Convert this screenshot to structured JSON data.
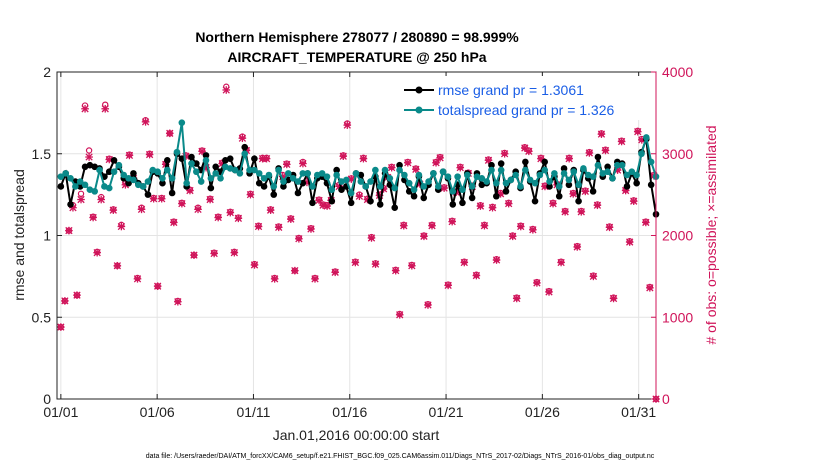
{
  "chart_data": {
    "type": "line",
    "title": "Northern Hemisphere 278077 / 280890 = 98.999%",
    "subtitle": "AIRCRAFT_TEMPERATURE @ 250 hPa",
    "xlabel": "Jan.01,2016 00:00:00 start",
    "ylabel": "rmse and totalspread",
    "y2label": "# of obs: o=possible; ×=assimilated",
    "ylim": [
      0,
      2
    ],
    "y2lim": [
      0,
      4000
    ],
    "xlim": [
      0.8,
      31.9
    ],
    "xticks": [
      1,
      6,
      11,
      16,
      21,
      26,
      31
    ],
    "xtick_labels": [
      "01/01",
      "01/06",
      "01/11",
      "01/16",
      "01/21",
      "01/26",
      "01/31"
    ],
    "yticks": [
      0,
      0.5,
      1,
      1.5,
      2
    ],
    "ytick_labels": [
      "0",
      "0.5",
      "1",
      "1.5",
      "2"
    ],
    "y2ticks": [
      0,
      1000,
      2000,
      3000,
      4000
    ],
    "y2tick_labels": [
      "0",
      "1000",
      "2000",
      "3000",
      "4000"
    ],
    "grid": true,
    "legend_position": "top-right",
    "series": [
      {
        "name": "rmse grand pr = 1.3061",
        "color": "#000000",
        "values": [
          1.3,
          1.38,
          1.19,
          1.33,
          1.3,
          1.42,
          1.43,
          1.42,
          1.41,
          1.36,
          1.39,
          1.46,
          1.42,
          1.35,
          1.32,
          1.38,
          1.32,
          1.3,
          1.25,
          1.39,
          1.38,
          1.32,
          1.46,
          1.26,
          1.5,
          1.47,
          1.3,
          1.48,
          1.44,
          1.4,
          1.49,
          1.29,
          1.42,
          1.39,
          1.46,
          1.47,
          1.4,
          1.41,
          1.54,
          1.38,
          1.47,
          1.32,
          1.3,
          1.36,
          1.25,
          1.41,
          1.3,
          1.34,
          1.37,
          1.26,
          1.32,
          1.38,
          1.2,
          1.35,
          1.36,
          1.32,
          1.21,
          1.4,
          1.28,
          1.3,
          1.2,
          1.38,
          1.37,
          1.3,
          1.21,
          1.36,
          1.19,
          1.38,
          1.31,
          1.17,
          1.43,
          1.34,
          1.27,
          1.24,
          1.36,
          1.23,
          1.31,
          1.38,
          1.28,
          1.39,
          1.35,
          1.19,
          1.31,
          1.2,
          1.38,
          1.23,
          1.38,
          1.31,
          1.32,
          1.43,
          1.24,
          1.44,
          1.27,
          1.34,
          1.39,
          1.29,
          1.45,
          1.33,
          1.21,
          1.38,
          1.45,
          1.3,
          1.36,
          1.24,
          1.41,
          1.31,
          1.4,
          1.21,
          1.4,
          1.35,
          1.27,
          1.48,
          1.36,
          1.42,
          1.35,
          1.45,
          1.44,
          1.3,
          1.38,
          1.32,
          1.51,
          1.59,
          1.31,
          1.13
        ]
      },
      {
        "name": "totalspread grand pr = 1.326",
        "color": "#0a8a8a",
        "values": [
          1.36,
          1.38,
          1.35,
          1.3,
          1.33,
          1.31,
          1.28,
          1.27,
          1.4,
          1.3,
          1.29,
          1.39,
          1.43,
          1.37,
          1.35,
          1.34,
          1.31,
          1.3,
          1.33,
          1.4,
          1.39,
          1.35,
          1.4,
          1.35,
          1.51,
          1.69,
          1.32,
          1.44,
          1.39,
          1.33,
          1.46,
          1.35,
          1.38,
          1.35,
          1.42,
          1.41,
          1.4,
          1.38,
          1.5,
          1.4,
          1.4,
          1.38,
          1.35,
          1.37,
          1.3,
          1.4,
          1.33,
          1.38,
          1.35,
          1.33,
          1.38,
          1.38,
          1.3,
          1.37,
          1.38,
          1.36,
          1.28,
          1.37,
          1.33,
          1.34,
          1.26,
          1.38,
          1.33,
          1.3,
          1.33,
          1.4,
          1.3,
          1.4,
          1.35,
          1.29,
          1.4,
          1.37,
          1.32,
          1.28,
          1.37,
          1.3,
          1.33,
          1.38,
          1.3,
          1.39,
          1.36,
          1.27,
          1.36,
          1.28,
          1.37,
          1.3,
          1.36,
          1.35,
          1.33,
          1.4,
          1.32,
          1.4,
          1.32,
          1.34,
          1.37,
          1.3,
          1.4,
          1.34,
          1.32,
          1.37,
          1.4,
          1.33,
          1.38,
          1.3,
          1.38,
          1.34,
          1.39,
          1.31,
          1.41,
          1.37,
          1.36,
          1.43,
          1.38,
          1.39,
          1.35,
          1.43,
          1.43,
          1.37,
          1.39,
          1.37,
          1.5,
          1.6,
          1.45,
          1.36
        ]
      },
      {
        "name": "obs possible",
        "marker": "o",
        "color": "#d0145a",
        "values": [
          880,
          1200,
          2060,
          2370,
          1270,
          2510,
          3590,
          3040,
          2230,
          1800,
          2470,
          3600,
          2940,
          2320,
          1630,
          2130,
          2640,
          2990,
          2700,
          1480,
          2340,
          3410,
          3000,
          2460,
          1380,
          2460,
          2880,
          3250,
          2170,
          1200,
          2400,
          2980,
          2560,
          1760,
          2340,
          3040,
          2840,
          2450,
          1790,
          2230,
          2890,
          3820,
          2290,
          1800,
          2220,
          3210,
          3050,
          2510,
          1650,
          2120,
          2950,
          2950,
          2320,
          1480,
          2110,
          2740,
          2880,
          2210,
          1570,
          1970,
          2900,
          2670,
          2090,
          1480,
          2440,
          2380,
          2370,
          2440,
          1560,
          2620,
          2980,
          3370,
          2700,
          1680,
          2500,
          2950,
          2450,
          1980,
          1660,
          2500,
          2580,
          2720,
          2840,
          1580,
          1040,
          2130,
          2900,
          1640,
          2820,
          2640,
          2000,
          1160,
          2130,
          2900,
          2960,
          2590,
          1400,
          2180,
          2540,
          2840,
          1680,
          2770,
          2610,
          1520,
          2370,
          2130,
          2930,
          2350,
          1710,
          2520,
          3010,
          2400,
          2000,
          1240,
          2120,
          3080,
          3040,
          2080,
          1430,
          2950,
          2610,
          1320,
          2400,
          2630,
          1680,
          2300,
          2950,
          2520,
          1870,
          2300,
          2550,
          3020,
          1510,
          2380,
          3250,
          3050,
          2110,
          1240,
          2810,
          3160,
          2560,
          1930,
          2430,
          3280,
          3180,
          2170,
          1370,
          2740,
          0
        ]
      },
      {
        "name": "obs assimilated",
        "marker": "x",
        "color": "#d0145a",
        "values": [
          880,
          1200,
          2060,
          2340,
          1270,
          2440,
          3550,
          2960,
          2220,
          1790,
          2440,
          3550,
          2930,
          2310,
          1630,
          2110,
          2620,
          2980,
          2700,
          1470,
          2320,
          3390,
          2990,
          2450,
          1380,
          2450,
          2870,
          3250,
          2160,
          1190,
          2390,
          2970,
          2550,
          1760,
          2320,
          3030,
          2830,
          2440,
          1780,
          2220,
          2880,
          3780,
          2280,
          1790,
          2210,
          3190,
          3040,
          2500,
          1640,
          2110,
          2940,
          2940,
          2310,
          1470,
          2100,
          2720,
          2870,
          2200,
          1570,
          1960,
          2880,
          2650,
          2080,
          1470,
          2430,
          2370,
          2360,
          2430,
          1550,
          2600,
          2970,
          3350,
          2690,
          1670,
          2480,
          2940,
          2440,
          1970,
          1650,
          2490,
          2570,
          2710,
          2830,
          1570,
          1030,
          2120,
          2890,
          1630,
          2810,
          2630,
          1990,
          1150,
          2120,
          2890,
          2950,
          2580,
          1390,
          2170,
          2530,
          2830,
          1670,
          2760,
          2600,
          1510,
          2360,
          2120,
          2920,
          2340,
          1700,
          2510,
          3000,
          2390,
          1990,
          1230,
          2110,
          3070,
          3030,
          2070,
          1420,
          2940,
          2600,
          1310,
          2390,
          2620,
          1670,
          2290,
          2940,
          2510,
          1860,
          2290,
          2540,
          3010,
          1500,
          2370,
          3240,
          3040,
          2100,
          1230,
          2800,
          3150,
          2550,
          1920,
          2420,
          3270,
          3170,
          2160,
          1360,
          2730,
          0
        ]
      }
    ]
  },
  "footnote": "data file: /Users/raeder/DAI/ATM_forcXX/CAM6_setup/f.e21.FHIST_BGC.f09_025.CAM6assim.011/Diags_NTrS_2017-02/Diags_NTrS_2016-01/obs_diag_output.nc"
}
